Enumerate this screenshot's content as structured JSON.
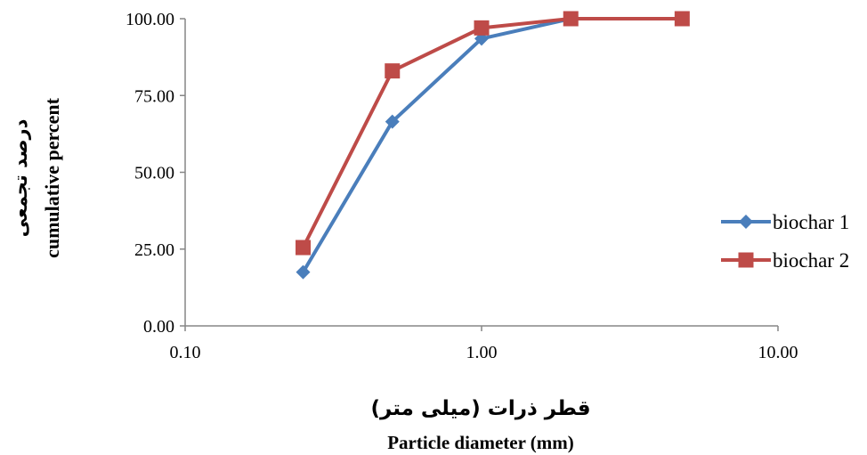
{
  "chart_data": {
    "type": "line",
    "title": "",
    "xlabel": {
      "fa": "قطر ذرات (میلی متر)",
      "en": "Particle diameter (mm)"
    },
    "ylabel": {
      "fa": "درصد تجمعی",
      "en": "cumulative percent"
    },
    "xscale": "log",
    "xlim": [
      0.1,
      10
    ],
    "ylim": [
      0,
      100
    ],
    "x_ticks": [
      "0.10",
      "1.00",
      "10.00"
    ],
    "y_ticks": [
      "0.00",
      "25.00",
      "50.00",
      "75.00",
      "100.00"
    ],
    "grid": false,
    "legend_position": "right",
    "series": [
      {
        "name": "biochar 1",
        "color": "#4a7ebb",
        "marker": "diamond",
        "x": [
          0.25,
          0.5,
          1.0,
          2.0,
          4.75
        ],
        "y": [
          17.5,
          66.5,
          93.5,
          100.0,
          100.0
        ]
      },
      {
        "name": "biochar 2",
        "color": "#be4b48",
        "marker": "square",
        "x": [
          0.25,
          0.5,
          1.0,
          2.0,
          4.75
        ],
        "y": [
          25.5,
          83.0,
          97.0,
          100.0,
          100.0
        ]
      }
    ]
  }
}
